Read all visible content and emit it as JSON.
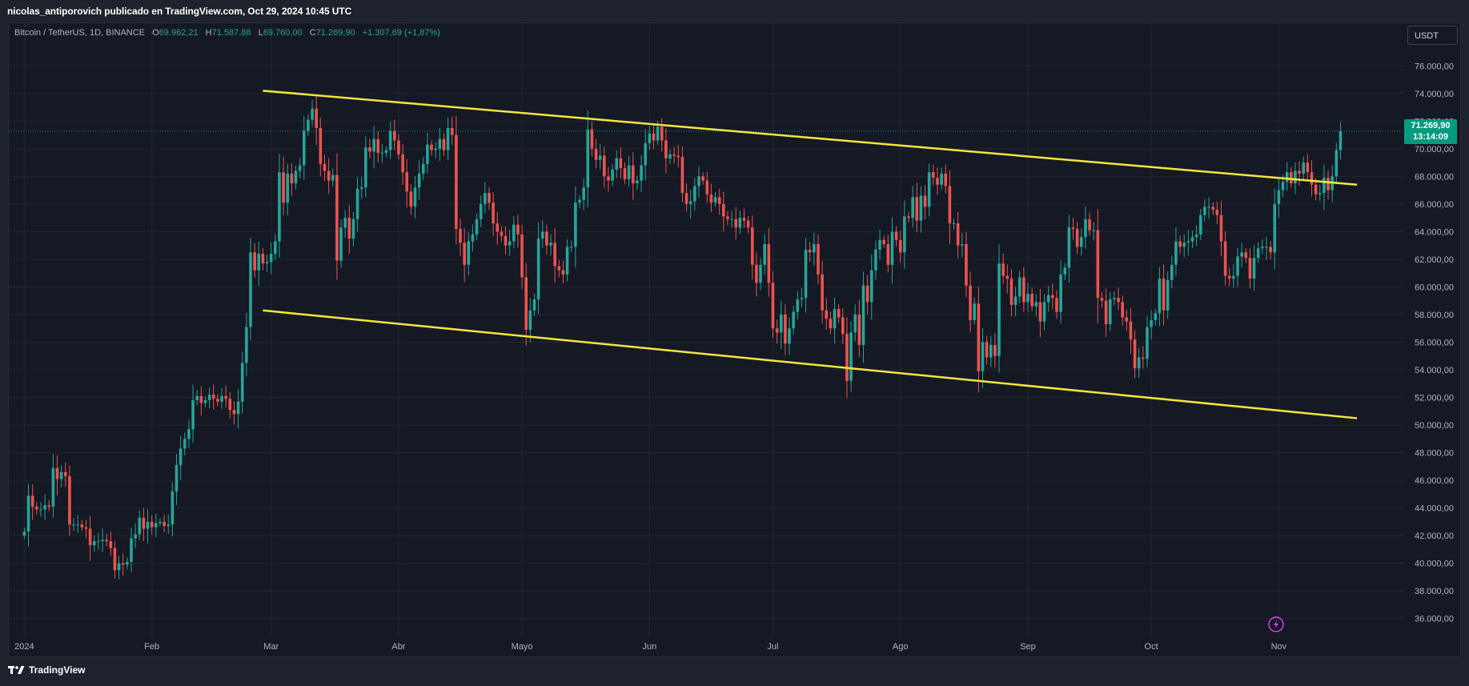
{
  "header": {
    "publisher_line": "nicolas_antiporovich publicado en TradingView.com, Oct 29, 2024 10:45 UTC"
  },
  "legend": {
    "symbol": "Bitcoin / TetherUS, 1D, BINANCE",
    "open_label": "O",
    "open": "69.962,21",
    "high_label": "H",
    "high": "71.587,88",
    "low_label": "L",
    "low": "69.760,00",
    "close_label": "C",
    "close": "71.269,90",
    "change": "+1.307,69 (+1,87%)"
  },
  "currency_button": "USDT",
  "last_price": {
    "price": "71.269,90",
    "countdown": "13:14:09"
  },
  "brand": {
    "name": "TradingView",
    "icon": "tradingview-logo-icon"
  },
  "alert_icon": "lightning-icon",
  "colors": {
    "up": "#26a69a",
    "down": "#ef5350",
    "trendline": "#f5e83c",
    "background": "#151924",
    "price_tag": "#089981",
    "alert": "#e040fb"
  },
  "chart_data": {
    "type": "candlestick",
    "symbol": "BTCUSDT",
    "interval": "1D",
    "y_axis": {
      "min": 35000,
      "max": 77000,
      "ticks": [
        36000,
        38000,
        40000,
        42000,
        44000,
        46000,
        48000,
        50000,
        52000,
        54000,
        56000,
        58000,
        60000,
        62000,
        64000,
        66000,
        68000,
        70000,
        72000,
        74000,
        76000
      ],
      "tick_labels": [
        "36.000,00",
        "38.000,00",
        "40.000,00",
        "42.000,00",
        "44.000,00",
        "46.000,00",
        "48.000,00",
        "50.000,00",
        "52.000,00",
        "54.000,00",
        "56.000,00",
        "58.000,00",
        "60.000,00",
        "62.000,00",
        "64.000,00",
        "66.000,00",
        "68.000,00",
        "70.000,00",
        "72.000,00",
        "74.000,00",
        "76.000,00"
      ]
    },
    "x_axis": {
      "labels": [
        "2024",
        "Feb",
        "Mar",
        "Abr",
        "Mayo",
        "Jun",
        "Jul",
        "Ago",
        "Sep",
        "Oct",
        "Nov"
      ],
      "label_dates": [
        "2024-01-01",
        "2024-02-01",
        "2024-03-01",
        "2024-04-01",
        "2024-05-01",
        "2024-06-01",
        "2024-07-01",
        "2024-08-01",
        "2024-09-01",
        "2024-10-01",
        "2024-11-01"
      ],
      "start": "2023-12-29",
      "end": "2024-11-20"
    },
    "last_price": 71269.9,
    "trendlines": [
      {
        "start_date": "2024-02-28",
        "start_price": 74200,
        "end_date": "2024-11-20",
        "end_price": 67400
      },
      {
        "start_date": "2024-02-28",
        "start_price": 58300,
        "end_date": "2024-11-20",
        "end_price": 50500
      }
    ],
    "closes": {
      "start_date": "2024-01-01",
      "values": [
        42300,
        44900,
        44100,
        43900,
        43900,
        44200,
        44100,
        46900,
        46100,
        46600,
        46300,
        42800,
        42800,
        42800,
        42600,
        42500,
        41300,
        41600,
        41600,
        41700,
        41600,
        41100,
        39500,
        40000,
        39900,
        40100,
        41800,
        42100,
        43300,
        42500,
        43000,
        42600,
        42900,
        43000,
        42700,
        42800,
        45200,
        47100,
        48300,
        49000,
        49700,
        51800,
        52100,
        51600,
        51800,
        52200,
        51900,
        51700,
        52100,
        51900,
        51100,
        50800,
        51700,
        54500,
        57100,
        62500,
        61200,
        62400,
        61700,
        61800,
        62400,
        63300,
        68300,
        66100,
        68200,
        67500,
        68400,
        68800,
        71300,
        72100,
        72900,
        71500,
        68900,
        68400,
        67700,
        68100,
        61900,
        64300,
        65000,
        63500,
        64900,
        67100,
        67200,
        70100,
        69800,
        70700,
        69700,
        69700,
        69900,
        71300,
        70600,
        69600,
        68300,
        66900,
        65800,
        67200,
        68200,
        68900,
        70300,
        69900,
        70000,
        70700,
        69900,
        71500,
        71000,
        64200,
        63200,
        61600,
        63300,
        63800,
        64900,
        66000,
        66800,
        66100,
        64600,
        64000,
        63700,
        63000,
        63300,
        64500,
        63800,
        60700,
        56900,
        58300,
        59100,
        63500,
        64000,
        63000,
        63200,
        61500,
        61200,
        60900,
        62900,
        62900,
        66100,
        66300,
        67200,
        71400,
        70000,
        69200,
        69500,
        68000,
        67700,
        68500,
        69300,
        68600,
        67800,
        68800,
        67500,
        67700,
        68800,
        70400,
        71100,
        70600,
        71600,
        70600,
        69300,
        69600,
        69500,
        69400,
        66800,
        66000,
        66200,
        67300,
        68000,
        67700,
        66700,
        66100,
        66500,
        66000,
        65100,
        64900,
        64900,
        64300,
        65000,
        64800,
        64300,
        61600,
        60300,
        61600,
        63100,
        60300,
        57000,
        56700,
        58000,
        55900,
        57000,
        58200,
        59100,
        59200,
        62700,
        62500,
        63100,
        60900,
        58300,
        57700,
        57000,
        58400,
        57800,
        56600,
        53200,
        56700,
        58000,
        55800,
        60100,
        58900,
        61200,
        62700,
        63400,
        63100,
        61600,
        64000,
        63400,
        62500,
        65100,
        65000,
        66500,
        64800,
        66600,
        65800,
        68300,
        67900,
        67400,
        68200,
        67300,
        64600,
        64600,
        63000,
        63100,
        60100,
        57600,
        58800,
        53900,
        56000,
        54900,
        55800,
        55000,
        61700,
        60800,
        60600,
        58700,
        59300,
        60700,
        58900,
        59500,
        58600,
        58900,
        57500,
        58900,
        59400,
        59200,
        58200,
        60900,
        61400,
        64300,
        64200,
        62900,
        63600,
        64900,
        64100,
        64100,
        59200,
        59000,
        57300,
        59100,
        59200,
        58900,
        57800,
        57500,
        56200,
        54100,
        54900,
        54800,
        57100,
        57600,
        58100,
        60600,
        58300,
        60500,
        61600,
        63300,
        62900,
        63200,
        63300,
        63600,
        63800,
        65200,
        65800,
        65800,
        65600,
        65200,
        63300,
        60800,
        60600,
        60800,
        62200,
        62500,
        62100,
        60600,
        62100,
        62800,
        62900,
        62900,
        62500,
        66000,
        67000,
        67600,
        68300,
        67500,
        68400,
        68200,
        69000,
        68300,
        67400,
        66700,
        66800,
        67900,
        67000,
        68000,
        69900,
        71269.9
      ]
    }
  }
}
